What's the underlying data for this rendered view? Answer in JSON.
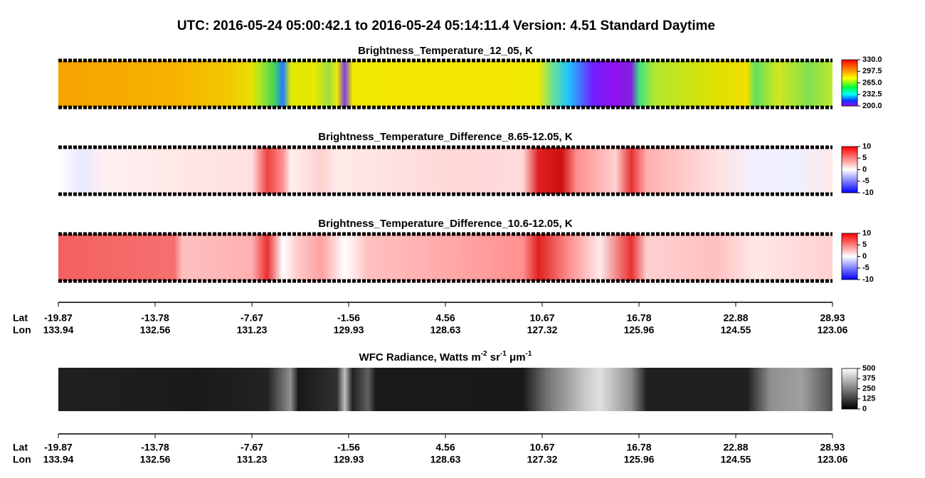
{
  "chart_data": {
    "type": "swath",
    "title": "UTC:  2016-05-24   05:00:42.1  to  2016-05-24   05:14:11.4    Version: 4.51  Standard Daytime",
    "panels": [
      {
        "title": [
          "Brightness_Temperature_12_05, K"
        ],
        "colormap": "rainbow",
        "clim": [
          200,
          330
        ],
        "cticks": [
          {
            "value": 330,
            "label": "330.0"
          },
          297.5,
          {
            "value": 265,
            "label": "265.0"
          },
          232.5,
          {
            "value": 200,
            "label": "200.0"
          }
        ]
      },
      {
        "title": [
          "Brightness_Temperature_Difference_8.65-12.05, K"
        ],
        "colormap": "bwr1",
        "clim": [
          -10,
          10
        ],
        "cticks": [
          10,
          5,
          0,
          -5,
          -10
        ]
      },
      {
        "title": [
          "Brightness_Temperature_Difference_10.6-12.05, K"
        ],
        "colormap": "bwr2",
        "clim": [
          -10,
          10
        ],
        "cticks": [
          10,
          5,
          0,
          -5,
          -10
        ]
      },
      {
        "title": [
          "WFC Radiance, Watts m",
          "-2",
          " sr",
          "-1",
          " μm",
          "-1"
        ],
        "colormap": "gray",
        "clim": [
          0,
          500
        ],
        "cticks": [
          500,
          375,
          250,
          125,
          0
        ]
      }
    ],
    "axis": {
      "lat_label": "Lat",
      "lon_label": "Lon",
      "lat": [
        -19.87,
        -13.78,
        -7.67,
        -1.56,
        4.56,
        10.67,
        16.78,
        22.88,
        28.93
      ],
      "lon": [
        133.94,
        132.56,
        131.23,
        129.93,
        128.63,
        127.32,
        125.96,
        124.55,
        123.06
      ]
    }
  }
}
